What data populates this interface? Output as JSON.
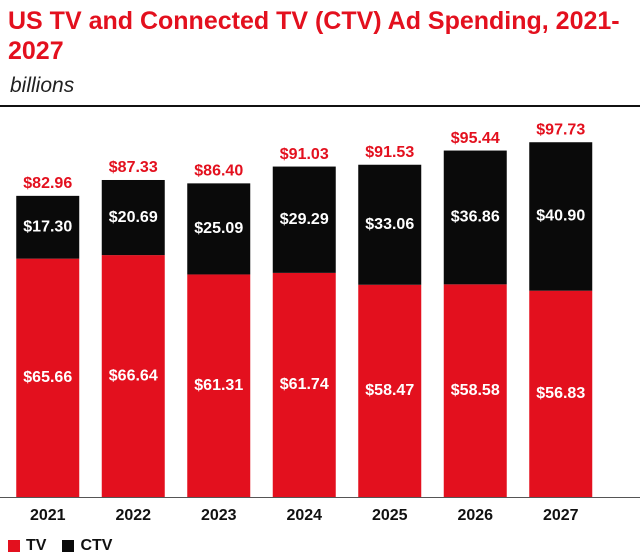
{
  "colors": {
    "tv": "#e3101e",
    "ctv": "#0a0a0a",
    "total_label": "#e3101e",
    "inner_label": "#ffffff"
  },
  "chart_data": {
    "type": "bar",
    "stacked": true,
    "title": "US TV and Connected TV (CTV) Ad Spending, 2021-2027",
    "subtitle": "billions",
    "categories": [
      "2021",
      "2022",
      "2023",
      "2024",
      "2025",
      "2026",
      "2027"
    ],
    "series": [
      {
        "name": "TV",
        "values": [
          65.66,
          66.64,
          61.31,
          61.74,
          58.47,
          58.58,
          56.83
        ],
        "labels": [
          "$65.66",
          "$66.64",
          "$61.31",
          "$61.74",
          "$58.47",
          "$58.58",
          "$56.83"
        ]
      },
      {
        "name": "CTV",
        "values": [
          17.3,
          20.69,
          25.09,
          29.29,
          33.06,
          36.86,
          40.9
        ],
        "labels": [
          "$17.30",
          "$20.69",
          "$25.09",
          "$29.29",
          "$33.06",
          "$36.86",
          "$40.90"
        ]
      }
    ],
    "totals": [
      82.96,
      87.33,
      86.4,
      91.03,
      91.53,
      95.44,
      97.73
    ],
    "total_labels": [
      "$82.96",
      "$87.33",
      "$86.40",
      "$91.03",
      "$91.53",
      "$95.44",
      "$97.73"
    ],
    "ylim": [
      0,
      100
    ],
    "legend": [
      "TV",
      "CTV"
    ],
    "legend_position": "bottom-left"
  }
}
